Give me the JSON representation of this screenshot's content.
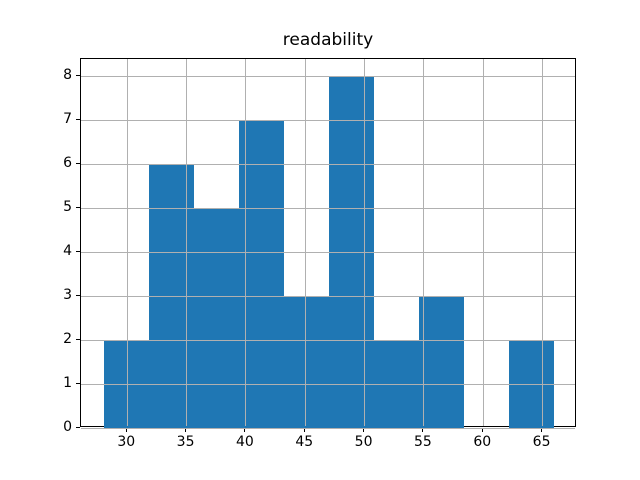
{
  "figure": {
    "background": "#ffffff"
  },
  "chart_data": {
    "type": "bar",
    "subtype": "histogram",
    "title": "readability",
    "xlabel": "",
    "ylabel": "",
    "bin_edges": [
      28.0,
      31.8,
      35.6,
      39.4,
      43.2,
      47.0,
      50.8,
      54.6,
      58.4,
      62.2,
      66.0
    ],
    "counts": [
      2,
      6,
      5,
      7,
      3,
      8,
      2,
      3,
      0,
      2
    ],
    "xticks": [
      30,
      35,
      40,
      45,
      50,
      55,
      60,
      65
    ],
    "yticks": [
      0,
      1,
      2,
      3,
      4,
      5,
      6,
      7,
      8
    ],
    "xlim": [
      26.1,
      67.9
    ],
    "ylim": [
      0,
      8.4
    ],
    "grid": true,
    "grid_over_bars": true,
    "legend": "none",
    "colors": {
      "bar": "#1f77b4",
      "grid": "#b0b0b0",
      "spine": "#000000",
      "tick": "#000000",
      "text": "#000000",
      "plot_background": "#ffffff"
    }
  }
}
